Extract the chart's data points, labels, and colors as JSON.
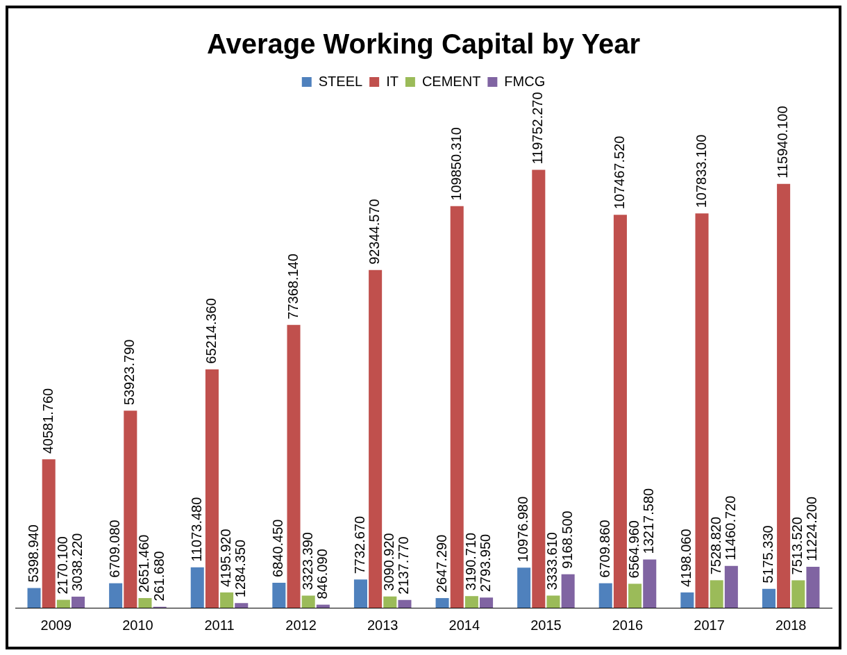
{
  "chart_data": {
    "type": "bar",
    "title": "Average Working Capital by Year",
    "categories": [
      "2009",
      "2010",
      "2011",
      "2012",
      "2013",
      "2014",
      "2015",
      "2016",
      "2017",
      "2018"
    ],
    "series": [
      {
        "name": "STEEL",
        "color": "#4f81bd",
        "values": [
          5398.94,
          6709.08,
          11073.48,
          6840.45,
          7732.67,
          2647.29,
          10976.98,
          6709.86,
          4198.06,
          5175.33
        ],
        "value_labels": [
          "5398.940",
          "6709.080",
          "11073.480",
          "6840.450",
          "7732.670",
          "2647.290",
          "10976.980",
          "6709.860",
          "4198.060",
          "5175.330"
        ]
      },
      {
        "name": "IT",
        "color": "#c0504d",
        "values": [
          40581.76,
          53923.79,
          65214.36,
          77368.14,
          92344.57,
          109850.31,
          119752.27,
          107467.52,
          107833.1,
          115940.1
        ],
        "value_labels": [
          "40581.760",
          "53923.790",
          "65214.360",
          "77368.140",
          "92344.570",
          "109850.310",
          "119752.270",
          "107467.520",
          "107833.100",
          "115940.100"
        ]
      },
      {
        "name": "CEMENT",
        "color": "#9bbb59",
        "values": [
          2170.1,
          2651.46,
          4195.92,
          3323.39,
          3090.92,
          3190.71,
          3333.61,
          6564.96,
          7528.82,
          7513.52
        ],
        "value_labels": [
          "2170.100",
          "2651.460",
          "4195.920",
          "3323.390",
          "3090.920",
          "3190.710",
          "3333.610",
          "6564.960",
          "7528.820",
          "7513.520"
        ]
      },
      {
        "name": "FMCG",
        "color": "#8064a2",
        "values": [
          3038.22,
          261.68,
          1284.35,
          846.09,
          2137.77,
          2793.95,
          9168.5,
          13217.58,
          11460.72,
          11224.2
        ],
        "value_labels": [
          "3038.220",
          "261.680",
          "1284.350",
          "846.090",
          "2137.770",
          "2793.950",
          "9168.500",
          "13217.580",
          "11460.720",
          "11224.200"
        ]
      }
    ],
    "grid": false,
    "legend": "top"
  }
}
